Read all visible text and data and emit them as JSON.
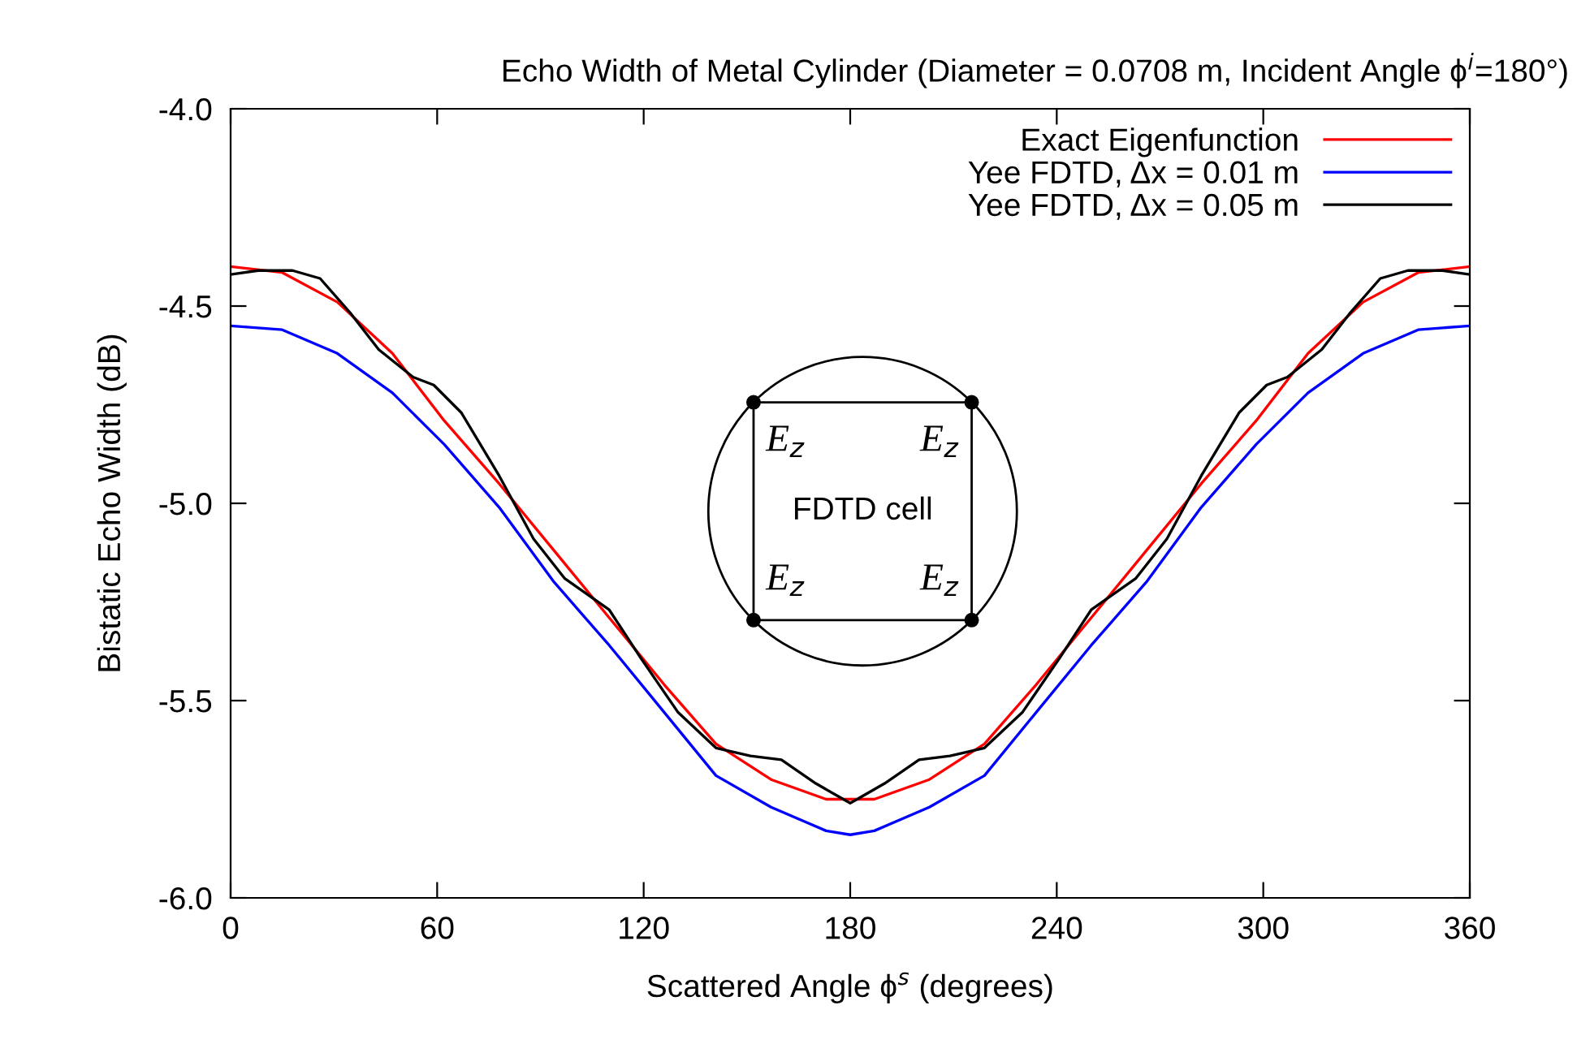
{
  "chart_data": {
    "type": "line",
    "title": "Echo Width of Metal Cylinder (Diameter = 0.0708 m, Incident Angle ϕ$^{i}$=180°)",
    "xlabel": "Scattered Angle ϕ$^{s}$ (degrees)",
    "ylabel": "Bistatic Echo Width (dB)",
    "xlim": [
      0,
      360
    ],
    "ylim": [
      -6.0,
      -4.0
    ],
    "xticks": [
      0,
      60,
      120,
      180,
      240,
      300,
      360
    ],
    "yticks": [
      {
        "value": -6.0,
        "label": "-6.0"
      },
      {
        "value": -5.5,
        "label": "-5.5"
      },
      {
        "value": -5.0,
        "label": "-5.0"
      },
      {
        "value": -4.5,
        "label": "-4.5"
      },
      {
        "value": -4.0,
        "label": "-4.0"
      }
    ],
    "grid": false,
    "legend": "top right",
    "marker": "none",
    "line_style": "solid",
    "series": [
      {
        "name": "Exact Eigenfunction",
        "color": "#ff0000",
        "x": [
          0,
          15,
          31,
          47,
          62,
          78,
          94,
          110,
          126,
          141,
          157,
          173,
          180,
          187,
          203,
          219,
          234,
          250,
          266,
          282,
          298,
          313,
          329,
          345,
          360
        ],
        "values": [
          -4.4,
          -4.415,
          -4.49,
          -4.62,
          -4.79,
          -4.95,
          -5.12,
          -5.29,
          -5.46,
          -5.61,
          -5.7,
          -5.75,
          -5.75,
          -5.75,
          -5.7,
          -5.61,
          -5.46,
          -5.29,
          -5.12,
          -4.95,
          -4.79,
          -4.62,
          -4.49,
          -4.415,
          -4.4
        ]
      },
      {
        "name": "Yee FDTD, Δx = 0.01 m",
        "color": "#0000ff",
        "x": [
          0,
          15,
          31,
          47,
          62,
          78,
          94,
          110,
          126,
          141,
          157,
          173,
          180,
          187,
          203,
          219,
          234,
          250,
          266,
          282,
          298,
          313,
          329,
          345,
          360
        ],
        "values": [
          -4.55,
          -4.56,
          -4.62,
          -4.72,
          -4.85,
          -5.01,
          -5.2,
          -5.36,
          -5.53,
          -5.69,
          -5.77,
          -5.83,
          -5.84,
          -5.83,
          -5.77,
          -5.69,
          -5.53,
          -5.36,
          -5.2,
          -5.01,
          -4.85,
          -4.72,
          -4.62,
          -4.56,
          -4.55
        ]
      },
      {
        "name": "Yee FDTD, Δx = 0.05 m",
        "color": "#000000",
        "x": [
          0,
          8,
          18,
          26,
          35,
          43,
          53,
          59,
          67,
          78,
          88,
          97,
          110,
          119,
          130,
          141,
          151,
          160,
          170,
          178,
          180,
          182,
          190,
          200,
          209,
          219,
          230,
          241,
          250,
          263,
          272,
          282,
          293,
          301,
          307,
          317,
          325,
          334,
          342,
          352,
          360
        ],
        "values": [
          -4.42,
          -4.41,
          -4.41,
          -4.43,
          -4.52,
          -4.61,
          -4.68,
          -4.7,
          -4.77,
          -4.93,
          -5.09,
          -5.19,
          -5.27,
          -5.39,
          -5.53,
          -5.62,
          -5.64,
          -5.65,
          -5.71,
          -5.75,
          -5.76,
          -5.75,
          -5.71,
          -5.65,
          -5.64,
          -5.62,
          -5.53,
          -5.39,
          -5.27,
          -5.19,
          -5.09,
          -4.93,
          -4.77,
          -4.7,
          -4.68,
          -4.61,
          -4.52,
          -4.43,
          -4.41,
          -4.41,
          -4.42
        ]
      }
    ],
    "annotations": [
      "FDTD cell",
      "E$_{z}$",
      "E$_{z}$",
      "E$_{z}$",
      "E$_{z}$"
    ]
  }
}
